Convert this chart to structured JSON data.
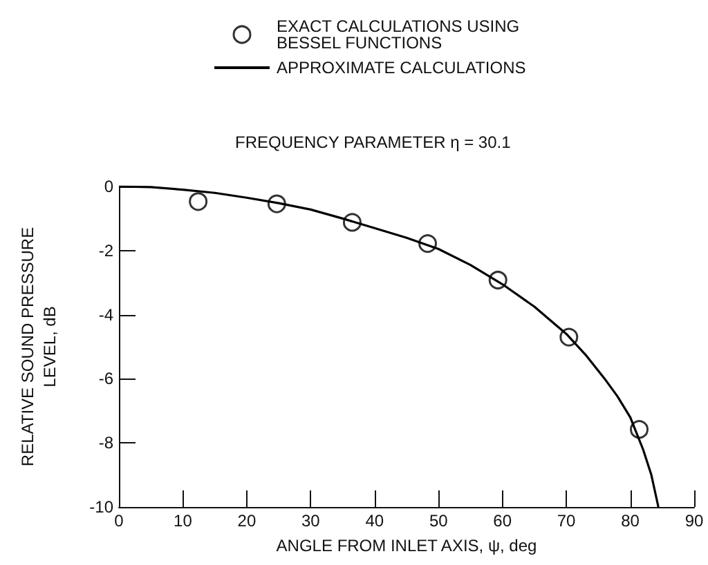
{
  "chart_data": {
    "type": "scatter",
    "title": "FREQUENCY PARAMETER η = 30.1",
    "xlabel": "ANGLE FROM INLET AXIS, ψ, deg",
    "ylabel": "RELATIVE SOUND PRESSURE\nLEVEL, dB",
    "xlim": [
      0,
      90
    ],
    "xticks": [
      0,
      10,
      20,
      30,
      40,
      50,
      60,
      70,
      80,
      90
    ],
    "ylim": [
      -10,
      0
    ],
    "yticks": [
      0,
      -2,
      -4,
      -6,
      -8,
      -10
    ],
    "grid": false,
    "legend": "top",
    "series": [
      {
        "name": "EXACT CALCULATIONS USING\nBESSEL FUNCTIONS",
        "marker": "circle",
        "color": "#000000",
        "x": [
          12.4,
          24.7,
          36.5,
          48.3,
          59.3,
          70.4,
          81.4
        ],
        "values": [
          -0.47,
          -0.54,
          -1.12,
          -1.78,
          -2.92,
          -4.7,
          -7.58
        ]
      },
      {
        "name": "APPROXIMATE CALCULATIONS",
        "type": "line",
        "marker": "none",
        "color": "#000000",
        "line_style": "solid",
        "x": [
          0,
          5,
          10,
          15,
          20,
          25,
          30,
          35,
          40,
          45,
          50,
          55,
          60,
          65,
          70,
          73,
          76,
          78,
          80,
          82,
          83.3,
          84.4
        ],
        "values": [
          0,
          -0.02,
          -0.1,
          -0.2,
          -0.35,
          -0.52,
          -0.72,
          -1.0,
          -1.3,
          -1.6,
          -1.95,
          -2.45,
          -3.05,
          -3.75,
          -4.6,
          -5.25,
          -6.0,
          -6.55,
          -7.2,
          -8.2,
          -9.0,
          -10
        ]
      }
    ]
  }
}
